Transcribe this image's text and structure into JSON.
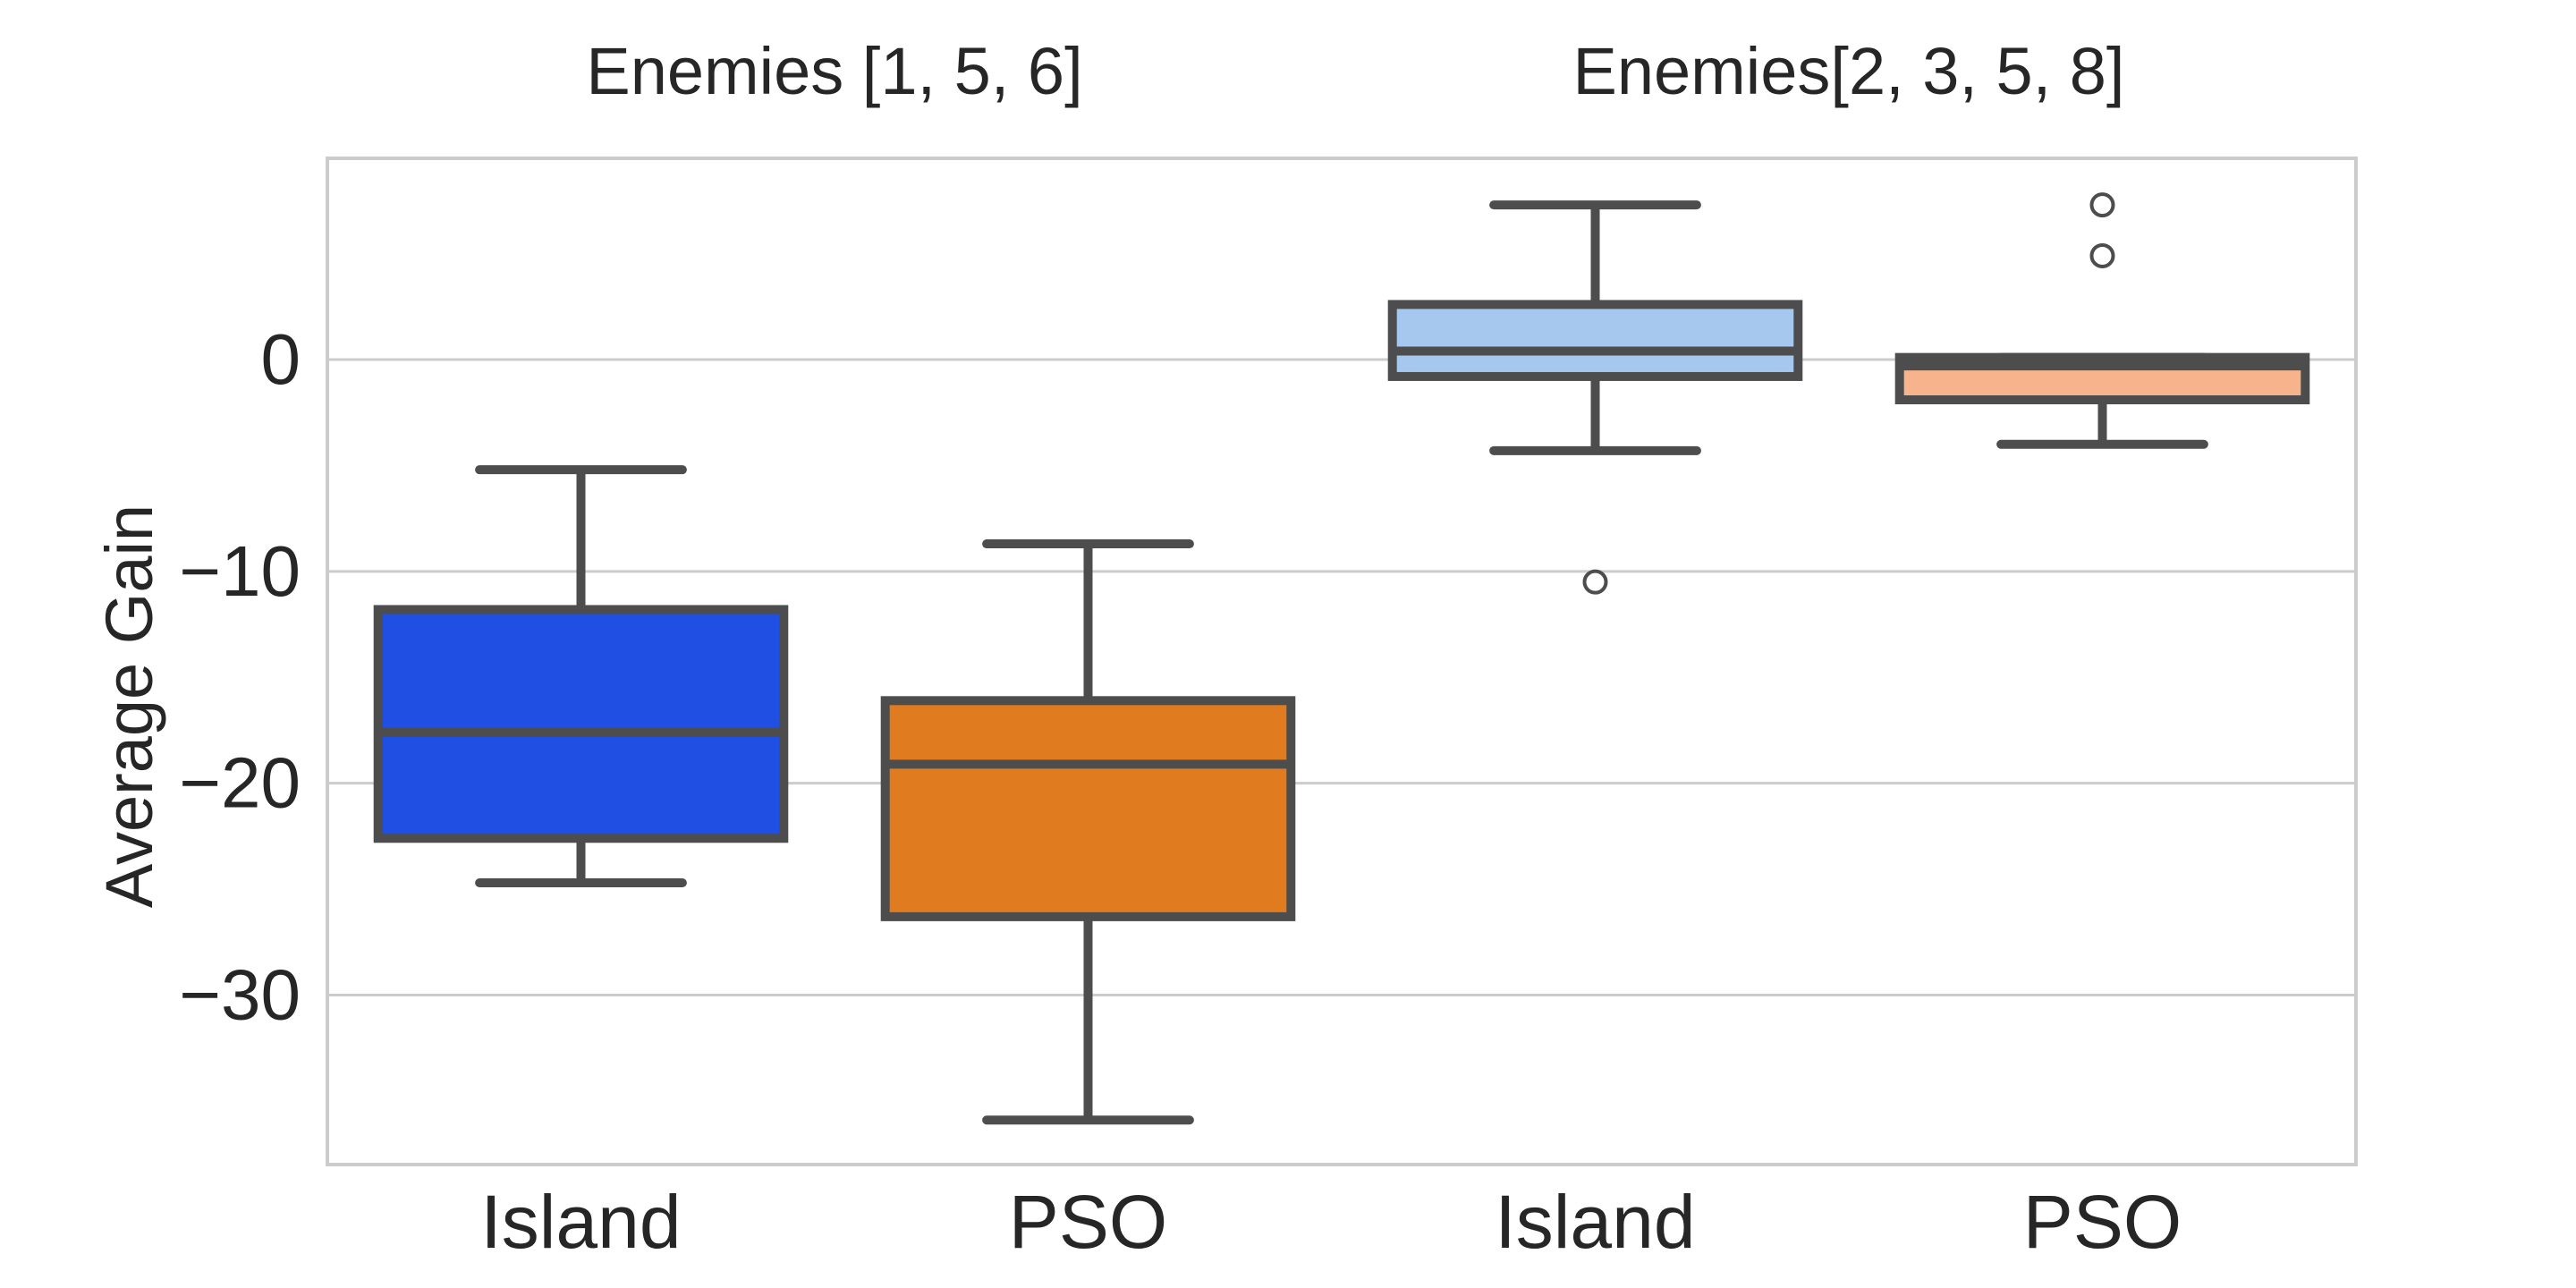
{
  "chart_data": {
    "type": "box",
    "ylabel": "Average Gain",
    "ylim": [
      -38,
      9.5
    ],
    "yticks": [
      0,
      -10,
      -20,
      -30
    ],
    "ytick_labels": [
      "0",
      "−10",
      "−20",
      "−30"
    ],
    "grid": "horizontal",
    "colors": {
      "island_group1": "#1f4fe3",
      "pso_group1": "#e07b20",
      "island_group2": "#a6c8ef",
      "pso_group2": "#f7b48c",
      "box_edge": "#4d4d4d",
      "grid": "#cccccc",
      "frame": "#cccccc"
    },
    "groups": [
      {
        "title": "Enemies [1, 5, 6]"
      },
      {
        "title": "Enemies[2, 3, 5, 8]"
      }
    ],
    "boxes": [
      {
        "group": 0,
        "label": "Island",
        "color": "#1f4fe3",
        "whislo": -24.7,
        "q1": -22.6,
        "med": -17.6,
        "q3": -11.8,
        "whishi": -5.2,
        "fliers": []
      },
      {
        "group": 0,
        "label": "PSO",
        "color": "#e07b20",
        "whislo": -35.9,
        "q1": -26.3,
        "med": -19.1,
        "q3": -16.1,
        "whishi": -8.7,
        "fliers": []
      },
      {
        "group": 1,
        "label": "Island",
        "color": "#a6c8ef",
        "whislo": -4.3,
        "q1": -0.8,
        "med": 0.4,
        "q3": 2.6,
        "whishi": 7.3,
        "fliers": [
          -10.5
        ]
      },
      {
        "group": 1,
        "label": "PSO",
        "color": "#f7b48c",
        "whislo": -4.0,
        "q1": -1.9,
        "med": -0.3,
        "q3": 0.1,
        "whishi": 0.1,
        "fliers": [
          7.3,
          4.9
        ]
      }
    ]
  }
}
